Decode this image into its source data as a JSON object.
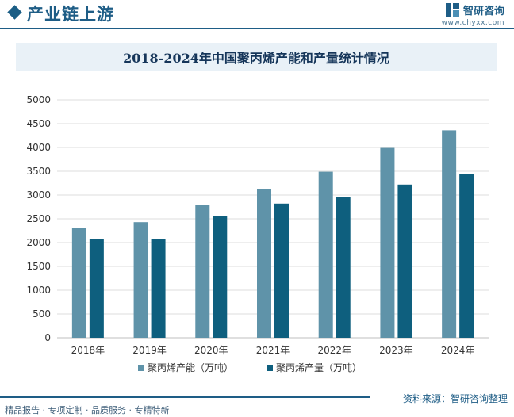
{
  "header": {
    "section_title": "产业链上游",
    "logo_text": "智研咨询",
    "logo_url": "www.chyxx.com"
  },
  "colors": {
    "capacity": "#5f93a9",
    "output": "#0e5f7e",
    "brand": "#1e5d86",
    "grid": "#dcdcdc"
  },
  "chart_data": {
    "type": "bar",
    "title": "2018-2024年中国聚丙烯产能和产量统计情况",
    "categories": [
      "2018年",
      "2019年",
      "2020年",
      "2021年",
      "2022年",
      "2023年",
      "2024年"
    ],
    "series": [
      {
        "name": "聚丙烯产能（万吨）",
        "values": [
          2300,
          2430,
          2800,
          3120,
          3490,
          3990,
          4360
        ]
      },
      {
        "name": "聚丙烯产量（万吨）",
        "values": [
          2080,
          2080,
          2550,
          2820,
          2950,
          3220,
          3450
        ]
      }
    ],
    "ylim": [
      0,
      5000
    ],
    "yticks": [
      "0",
      "500",
      "1000",
      "1500",
      "2000",
      "2500",
      "3000",
      "3500",
      "4000",
      "4500",
      "5000"
    ],
    "xlabel": "",
    "ylabel": "",
    "grid": true,
    "legend_position": "bottom"
  },
  "footer": {
    "left": "精品报告 · 专项定制 · 品质服务 · 专精特新",
    "right": "资料来源：智研咨询整理"
  }
}
